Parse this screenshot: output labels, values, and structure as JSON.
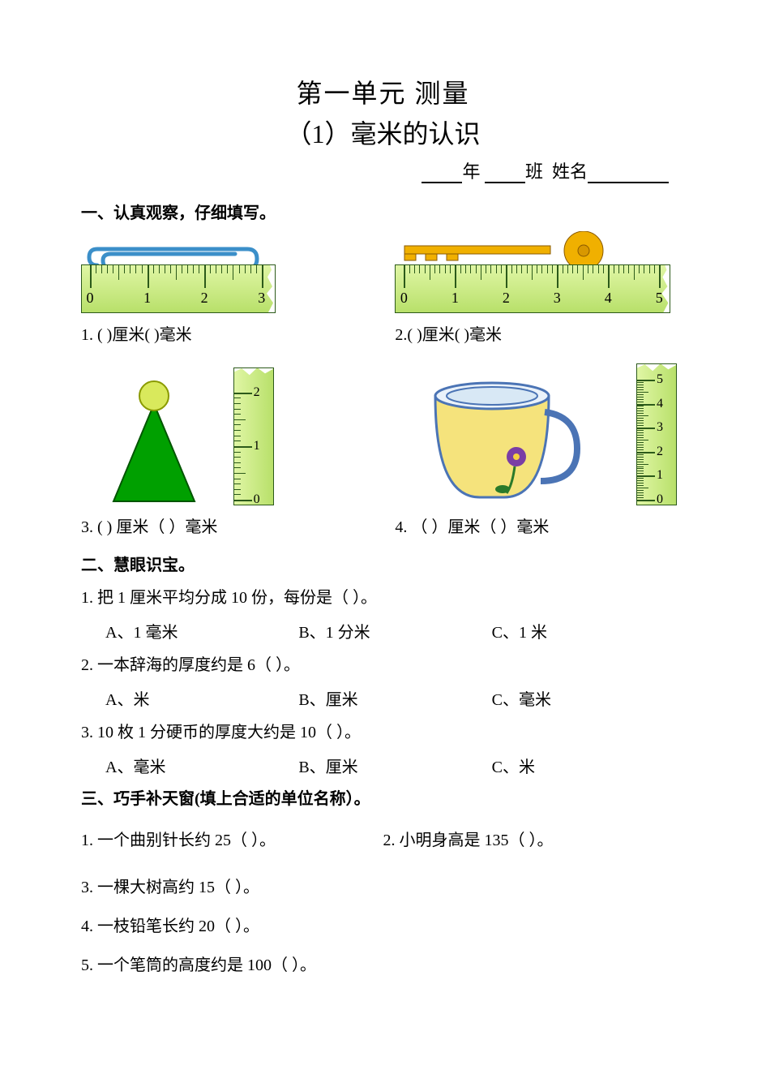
{
  "title": {
    "line1": "第一单元    测量",
    "line2": "（1）毫米的认识"
  },
  "nameRow": {
    "yearLabel": "年",
    "classLabel": "班",
    "nameLabel": "姓名"
  },
  "section1": {
    "heading": "一、认真观察，仔细填写。",
    "q1": {
      "caption": "1. (        )厘米(        )毫米",
      "ruler_max": 3,
      "ruler_bg": "#cfea80",
      "tick_color": "#2c5a1a",
      "clip_color": "#3b8fc9"
    },
    "q2": {
      "caption": "2.(        )厘米(        )毫米",
      "ruler_max": 5,
      "key_head": "#f0b000",
      "key_shaft": "#f0b000"
    },
    "q3": {
      "caption": "3. (      ) 厘米（    ）毫米",
      "ruler_max": 2,
      "cone_fill": "#00a000",
      "ball_fill": "#d0e040"
    },
    "q4": {
      "caption": "4. （   ）厘米（    ）毫米",
      "ruler_max": 5,
      "cup_rim": "#4b74b5",
      "cup_body": "#f5e37c",
      "cup_inner": "#eaf2fa",
      "flower": "#7a3ea5"
    }
  },
  "section2": {
    "heading": "二、慧眼识宝。",
    "q1": {
      "text": "1. 把 1 厘米平均分成 10 份，每份是（        ）。",
      "A": "A、1 毫米",
      "B": "B、1 分米",
      "C": "C、1 米"
    },
    "q2": {
      "text": "2. 一本辞海的厚度约是 6（        ）。",
      "A": "A、米",
      "B": "B、厘米",
      "C": "C、毫米"
    },
    "q3": {
      "text": "3. 10 枚 1 分硬币的厚度大约是 10（        ）。",
      "A": "A、毫米",
      "B": "B、厘米",
      "C": "C、米"
    }
  },
  "section3": {
    "heading": "三、巧手补天窗(填上合适的单位名称）。",
    "q1": "1. 一个曲别针长约 25（        ）。",
    "q2": "2. 小明身高是 135（        ）。",
    "q3": "3. 一棵大树高约 15（        ）。",
    "q4": "4. 一枝铅笔长约 20（        ）。",
    "q5": "5. 一个笔筒的高度约是 100（        ）。"
  },
  "colors": {
    "page_bg": "#ffffff",
    "text": "#000000",
    "ruler_fill": "#cfea80",
    "ruler_border": "#2c5a1a"
  }
}
